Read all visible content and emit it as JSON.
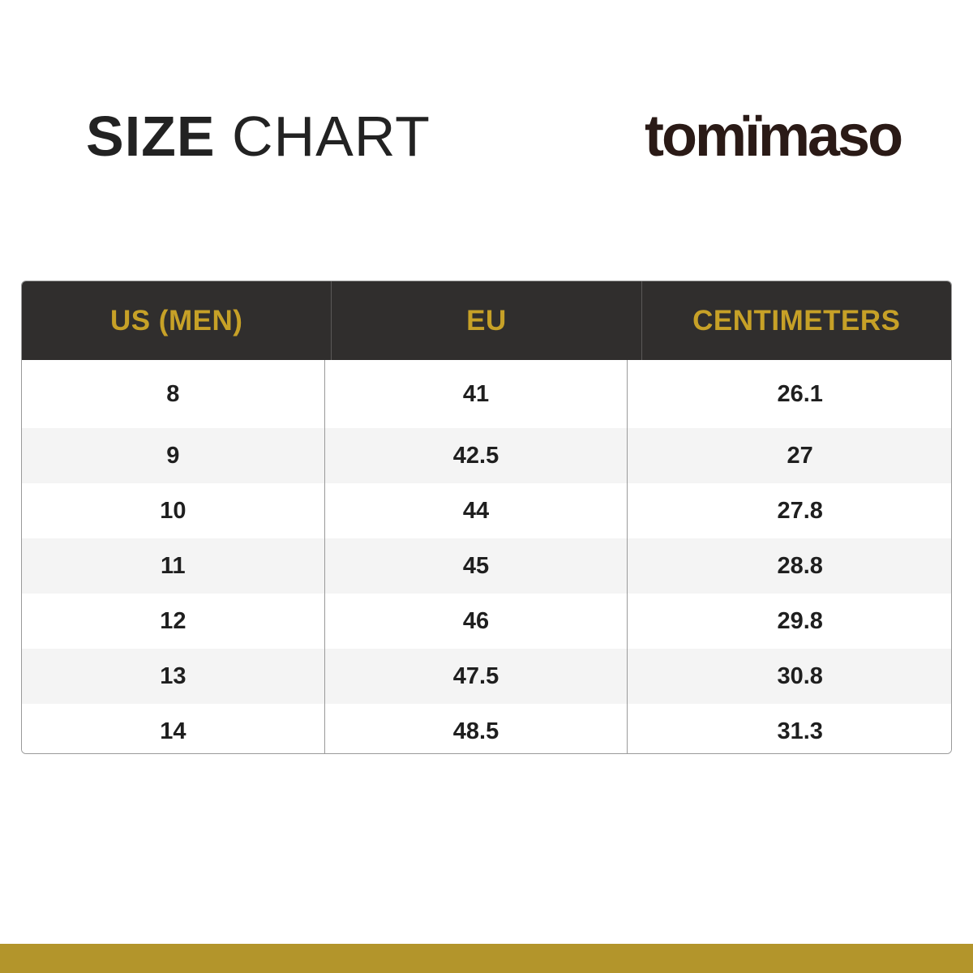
{
  "header": {
    "title_bold": "SIZE",
    "title_light": "CHART",
    "brand": "tomïmaso"
  },
  "table": {
    "columns": [
      "US (MEN)",
      "EU",
      "CENTIMETERS"
    ],
    "rows": [
      [
        "8",
        "41",
        "26.1"
      ],
      [
        "9",
        "42.5",
        "27"
      ],
      [
        "10",
        "44",
        "27.8"
      ],
      [
        "11",
        "45",
        "28.8"
      ],
      [
        "12",
        "46",
        "29.8"
      ],
      [
        "13",
        "47.5",
        "30.8"
      ],
      [
        "14",
        "48.5",
        "31.3"
      ]
    ]
  },
  "colors": {
    "header_bg": "#302e2d",
    "header_text": "#c7a127",
    "accent_bar": "#b3952b"
  }
}
